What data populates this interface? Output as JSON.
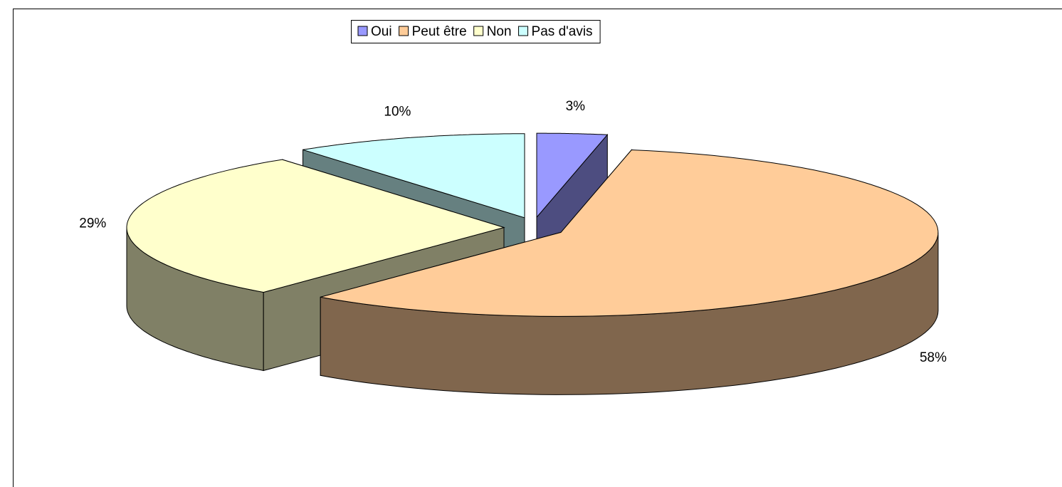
{
  "chart_data": {
    "type": "pie",
    "categories": [
      "Oui",
      "Peut être",
      "Non",
      "Pas d'avis"
    ],
    "values": [
      3,
      58,
      29,
      10
    ],
    "value_labels": [
      "3%",
      "58%",
      "29%",
      "10%"
    ],
    "colors": [
      "#9999ff",
      "#ffcc99",
      "#ffffcc",
      "#ccffff"
    ],
    "legend": "top"
  }
}
